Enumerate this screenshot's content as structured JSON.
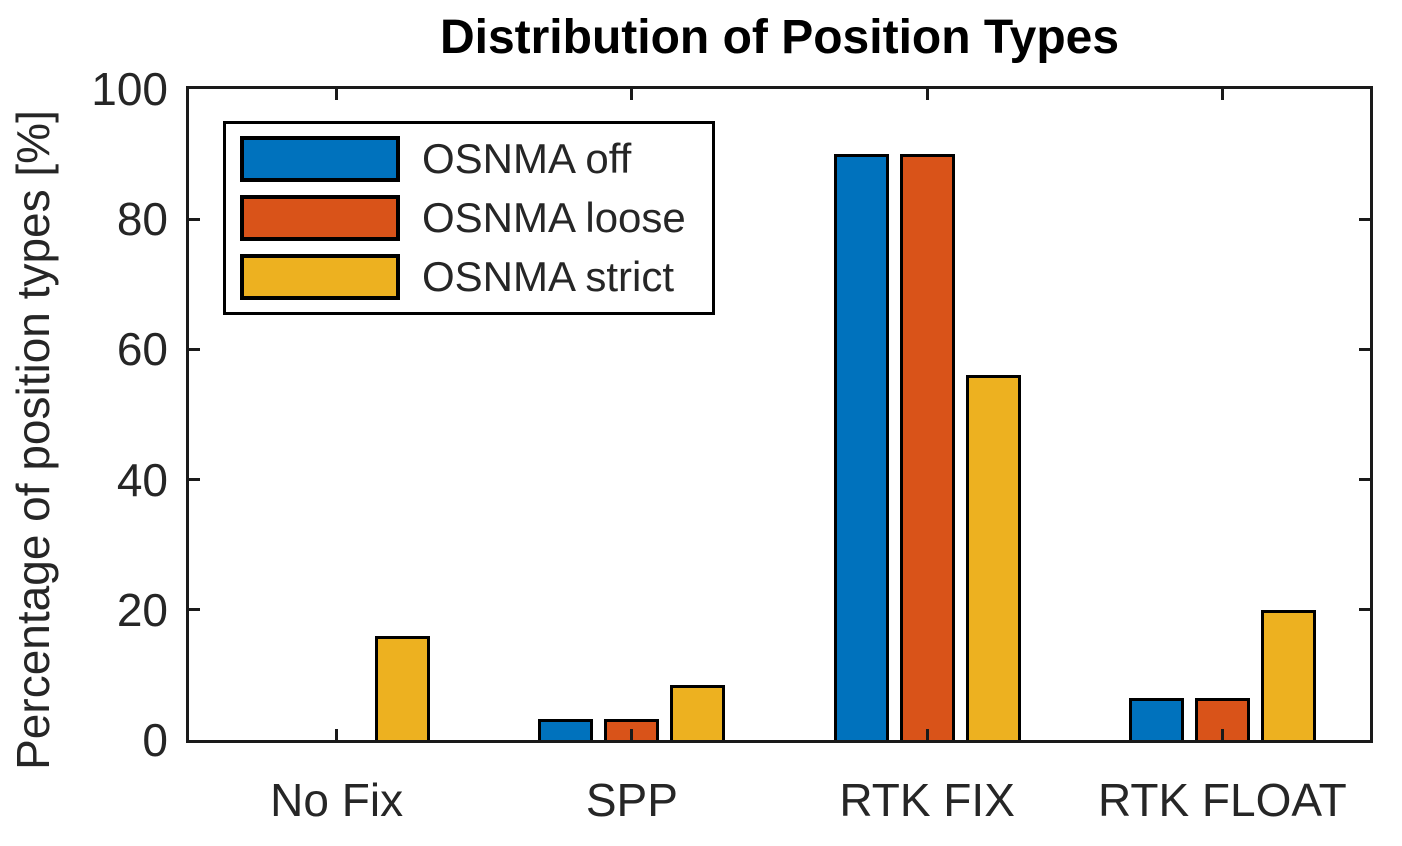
{
  "figure": {
    "background": "#ffffff",
    "axis_color": "#1a1a1a",
    "tick_label_color": "#262626",
    "bar_edge_color": "#000000"
  },
  "chart_data": {
    "type": "bar",
    "title": "Distribution of Position Types",
    "xlabel": "",
    "ylabel": "Percentage of position types [%]",
    "categories": [
      "No Fix",
      "SPP",
      "RTK FIX",
      "RTK FLOAT"
    ],
    "series": [
      {
        "name": "OSNMA off",
        "color": "#0072BD",
        "values": [
          0,
          3.2,
          90,
          6.5
        ]
      },
      {
        "name": "OSNMA loose",
        "color": "#D95319",
        "values": [
          0,
          3.2,
          90,
          6.5
        ]
      },
      {
        "name": "OSNMA strict",
        "color": "#EDB120",
        "values": [
          16,
          8.5,
          56,
          20
        ]
      }
    ],
    "ylim": [
      0,
      100
    ],
    "yticks": [
      0,
      20,
      40,
      60,
      80,
      100
    ],
    "grid": false,
    "legend_position": "top-left",
    "legend_entries": [
      "OSNMA off",
      "OSNMA loose",
      "OSNMA strict"
    ]
  }
}
